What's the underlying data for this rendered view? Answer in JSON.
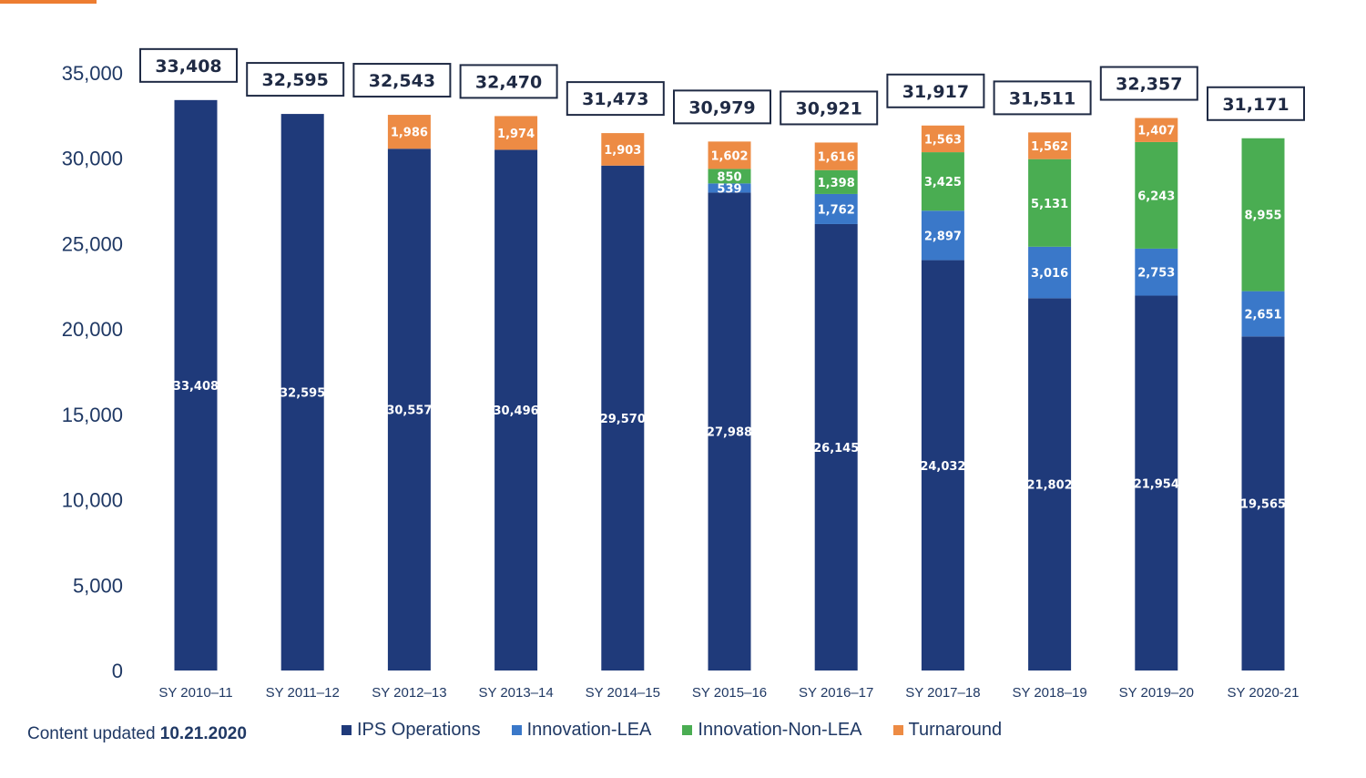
{
  "chart_data": {
    "type": "bar",
    "stacked": true,
    "categories": [
      "SY 2010–11",
      "SY 2011–12",
      "SY 2012–13",
      "SY 2013–14",
      "SY 2014–15",
      "SY 2015–16",
      "SY 2016–17",
      "SY 2017–18",
      "SY 2018–19",
      "SY 2019–20",
      "SY 2020-21"
    ],
    "series": [
      {
        "name": "IPS Operations",
        "color": "#1f3a7a",
        "values": [
          33408,
          32595,
          30557,
          30496,
          29570,
          27988,
          26145,
          24032,
          21802,
          21954,
          19565
        ]
      },
      {
        "name": "Innovation-LEA",
        "color": "#3a78c9",
        "values": [
          0,
          0,
          0,
          0,
          0,
          539,
          1762,
          2897,
          3016,
          2753,
          2651
        ]
      },
      {
        "name": "Innovation-Non-LEA",
        "color": "#4aad52",
        "values": [
          0,
          0,
          0,
          0,
          0,
          850,
          1398,
          3425,
          5131,
          6243,
          8955
        ]
      },
      {
        "name": "Turnaround",
        "color": "#ed8b44",
        "values": [
          0,
          0,
          1986,
          1974,
          1903,
          1602,
          1616,
          1563,
          1562,
          1407,
          0
        ]
      }
    ],
    "totals": [
      "33,408",
      "32,595",
      "32,543",
      "32,470",
      "31,473",
      "30,979",
      "30,921",
      "31,917",
      "31,511",
      "32,357",
      "31,171"
    ],
    "ylim": [
      0,
      35000
    ],
    "yticks": [
      "0",
      "5,000",
      "10,000",
      "15,000",
      "20,000",
      "25,000",
      "30,000",
      "35,000"
    ],
    "grid": false,
    "legend_position": "bottom"
  },
  "footer": {
    "prefix": "Content updated ",
    "date": "10.21.2020"
  },
  "legend": [
    "IPS Operations",
    "Innovation-LEA",
    "Innovation-Non-LEA",
    "Turnaround"
  ]
}
